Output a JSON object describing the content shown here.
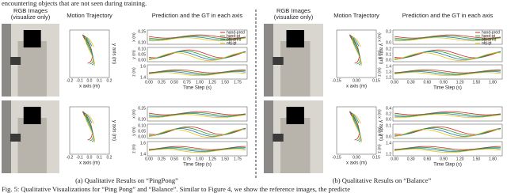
{
  "top_text": "encountering objects that are not seen during training.",
  "panels": [
    {
      "rgb_title": "RGB Images",
      "rgb_note": "(visualize only)",
      "traj_title": "Motion Trajectory",
      "pred_title": "Prediction and the GT in each axis",
      "legend": [
        "hand-pred",
        "hand-gt",
        "obj-pred",
        "obj-gt"
      ],
      "rows": [
        {
          "traj_xlabel": "x axis (m)",
          "traj_ylabel": "y axis (m)",
          "traj_xticks": [
            "-0.2",
            "-0.1",
            "0.0",
            "0.1",
            "0.2"
          ],
          "pred": [
            {
              "label": "x (m)",
              "ticks": [
                "0.25",
                "0.20"
              ]
            },
            {
              "label": "y (m)",
              "ticks": [
                "0.10",
                "0.05",
                "0.00"
              ]
            },
            {
              "label": "z (m)",
              "ticks": [
                "1.6",
                "1.4"
              ]
            }
          ],
          "time_label": "Time Step (s)",
          "time_ticks": [
            "0.00",
            "0.25",
            "0.50",
            "0.75",
            "1.00",
            "1.25",
            "1.50",
            "1.75"
          ]
        },
        {
          "traj_xlabel": "x axis (m)",
          "traj_ylabel": "y axis (m)",
          "traj_xticks": [
            "-0.2",
            "-0.1",
            "0.0",
            "0.1",
            "0.2"
          ],
          "pred": [
            {
              "label": "x (m)",
              "ticks": [
                "0.25",
                "0.20"
              ]
            },
            {
              "label": "y (m)",
              "ticks": [
                "0.10",
                "0.05",
                "0.00"
              ]
            },
            {
              "label": "z (m)",
              "ticks": [
                "1.6",
                "1.4"
              ]
            }
          ],
          "time_label": "Time Step (s)",
          "time_ticks": [
            "0.00",
            "0.25",
            "0.50",
            "0.75",
            "1.00",
            "1.25",
            "1.50",
            "1.75"
          ]
        }
      ],
      "caption": "(a) Qualitative Results on “PingPong”"
    },
    {
      "rgb_title": "RGB Images",
      "rgb_note": "(visualize only)",
      "traj_title": "Motion Trajectory",
      "pred_title": "Prediction and the GT in each axis",
      "legend": [
        "hand-pred",
        "hand-gt",
        "obj-pred",
        "obj-gt"
      ],
      "rows": [
        {
          "traj_xlabel": "x axis (m)",
          "traj_ylabel": "y axis (m)",
          "traj_xticks": [
            "-0.15",
            "0.00",
            "0.15"
          ],
          "pred": [
            {
              "label": "x (m)",
              "ticks": [
                "0.2",
                "0.0"
              ]
            },
            {
              "label": "y (m)",
              "ticks": [
                "0.2",
                "0.1",
                "0.0"
              ]
            },
            {
              "label": "z (m)",
              "ticks": [
                "1.4",
                "1.3",
                "1.2"
              ]
            }
          ],
          "time_label": "Time Step (s)",
          "time_ticks": [
            "0.00",
            "0.30",
            "0.60",
            "0.90",
            "1.20",
            "1.50",
            "1.80"
          ]
        },
        {
          "traj_xlabel": "x axis (m)",
          "traj_ylabel": "y axis (m)",
          "traj_xticks": [
            "-0.15",
            "0.00",
            "0.15"
          ],
          "pred": [
            {
              "label": "x (m)",
              "ticks": [
                "0.4",
                "0.2",
                "0.0"
              ]
            },
            {
              "label": "y (m)",
              "ticks": [
                "0.1",
                "0.0"
              ]
            },
            {
              "label": "z (m)",
              "ticks": [
                "1.4",
                "1.2"
              ]
            }
          ],
          "time_label": "Time Step (s)",
          "time_ticks": [
            "0.00",
            "0.30",
            "0.60",
            "0.90",
            "1.20",
            "1.50",
            "1.80"
          ]
        }
      ],
      "caption": "(b) Qualitative Results on “Balance”"
    }
  ],
  "fig_caption": "Fig. 5: Qualitative Visualizations for “Ping Pong” and “Balance”. Similar to Figure 4, we show the reference images, the predicte"
}
